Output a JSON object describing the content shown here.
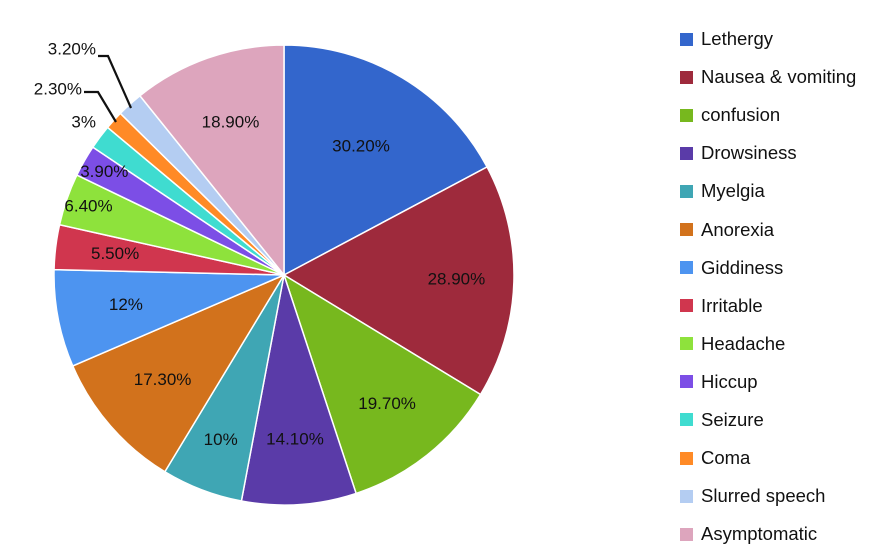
{
  "chart_data": {
    "type": "pie",
    "title": "",
    "legend_position": "right",
    "slices": [
      {
        "name": "Lethergy",
        "value": 30.2,
        "label": "30.20%",
        "color": "#3366cc"
      },
      {
        "name": "Nausea & vomiting",
        "value": 28.9,
        "label": "28.90%",
        "color": "#9e2a3c"
      },
      {
        "name": "confusion",
        "value": 19.7,
        "label": "19.70%",
        "color": "#77b81e"
      },
      {
        "name": "Drowsiness",
        "value": 14.1,
        "label": "14.10%",
        "color": "#5a3ba8"
      },
      {
        "name": "Myelgia",
        "value": 10,
        "label": "10%",
        "color": "#3fa6b4"
      },
      {
        "name": "Anorexia",
        "value": 17.3,
        "label": "17.30%",
        "color": "#d2721c"
      },
      {
        "name": "Giddiness",
        "value": 12,
        "label": "12%",
        "color": "#4d94f0"
      },
      {
        "name": "Irritable",
        "value": 5.5,
        "label": "5.50%",
        "color": "#d0364e"
      },
      {
        "name": "Headache",
        "value": 6.4,
        "label": "6.40%",
        "color": "#8ee23c"
      },
      {
        "name": "Hiccup",
        "value": 3.9,
        "label": "3.90%",
        "color": "#7c4ee6"
      },
      {
        "name": "Seizure",
        "value": 3,
        "label": "3%",
        "color": "#3fdcd0"
      },
      {
        "name": "Coma",
        "value": 2.3,
        "label": "2.30%",
        "color": "#ff8a26"
      },
      {
        "name": "Slurred speech",
        "value": 3.2,
        "label": "3.20%",
        "color": "#b4cdf2"
      },
      {
        "name": "Asymptomatic",
        "value": 18.9,
        "label": "18.90%",
        "color": "#dda5bd"
      }
    ]
  }
}
